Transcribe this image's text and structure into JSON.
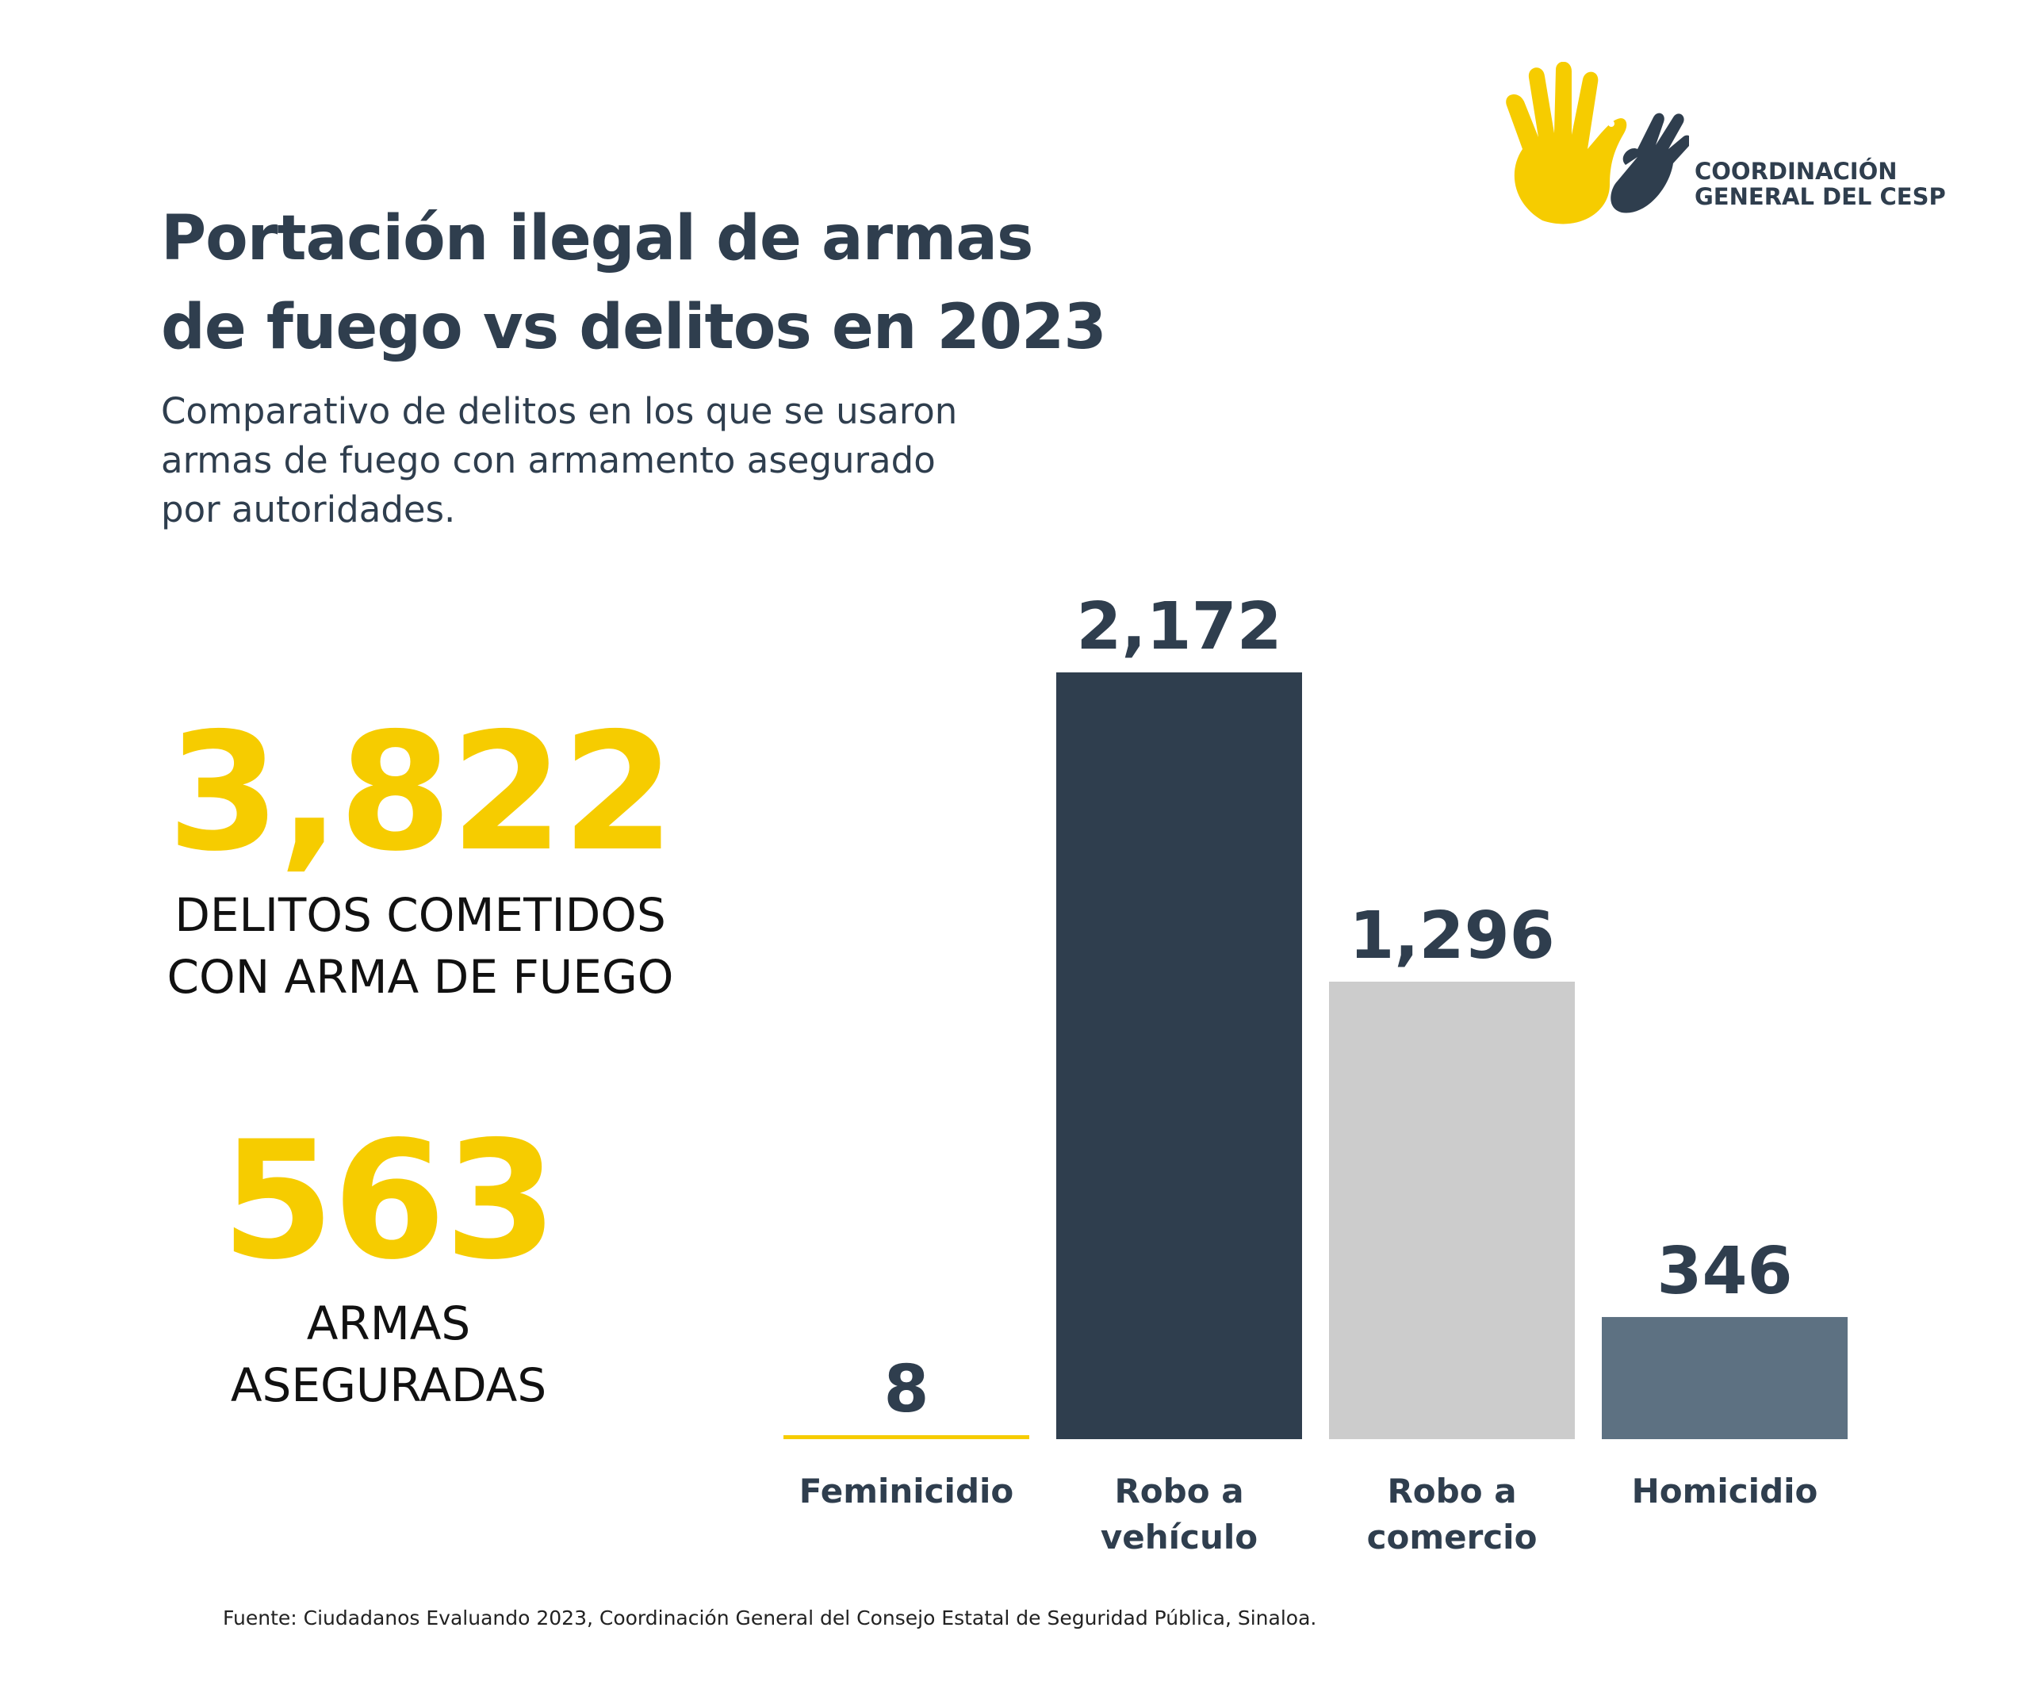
{
  "header": {
    "title_lines": [
      "Portación ilegal de armas",
      "de fuego vs delitos en 2023"
    ],
    "subtitle_lines": [
      "Comparativo de delitos en los que se usaron",
      "armas de fuego con armamento asegurado",
      "por autoridades."
    ]
  },
  "logo": {
    "icon": "hands-dove-icon",
    "text_lines": [
      "COORDINACIÓN",
      "GENERAL DEL CESP"
    ],
    "colors": {
      "yellow": "#f6cc00",
      "slate": "#2f3e4e"
    }
  },
  "stats": [
    {
      "value": "3,822",
      "label_lines": [
        "DELITOS COMETIDOS",
        "CON ARMA DE FUEGO"
      ]
    },
    {
      "value": "563",
      "label_lines": [
        "ARMAS",
        "ASEGURADAS"
      ]
    }
  ],
  "chart_data": {
    "type": "bar",
    "categories": [
      "Feminicidio",
      "Robo a vehículo",
      "Robo a comercio",
      "Homicidio"
    ],
    "category_label_lines": [
      [
        "Feminicidio"
      ],
      [
        "Robo a",
        "vehículo"
      ],
      [
        "Robo a",
        "comercio"
      ],
      [
        "Homicidio"
      ]
    ],
    "values": [
      8,
      2172,
      1296,
      346
    ],
    "value_labels": [
      "8",
      "2,172",
      "1,296",
      "346"
    ],
    "colors": [
      "#f6cc00",
      "#2f3e4e",
      "#cccccc",
      "#5d7182"
    ],
    "ylim": [
      0,
      2172
    ],
    "grid": false,
    "legend": "none"
  },
  "footer": {
    "source": "Fuente: Ciudadanos Evaluando 2023, Coordinación General del Consejo Estatal de Seguridad Pública, Sinaloa."
  }
}
